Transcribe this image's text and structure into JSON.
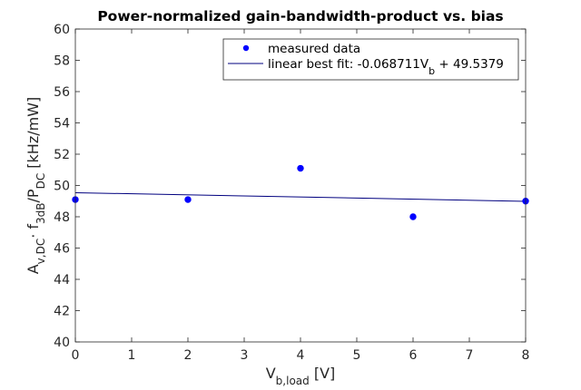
{
  "chart_data": {
    "type": "scatter",
    "title": "Power-normalized gain-bandwidth-product vs. bias",
    "xlabel": {
      "main": "V",
      "sub": "b,load",
      "rest": " [V]"
    },
    "ylabel": {
      "parts": [
        {
          "t": "A",
          "s": "n"
        },
        {
          "t": "v,DC",
          "s": "sub"
        },
        {
          "t": "· f",
          "s": "n"
        },
        {
          "t": "3dB",
          "s": "sub"
        },
        {
          "t": "/P",
          "s": "n"
        },
        {
          "t": "DC",
          "s": "sub"
        },
        {
          "t": " [kHz/mW]",
          "s": "n"
        }
      ]
    },
    "xlim": [
      0,
      8
    ],
    "ylim": [
      40,
      60
    ],
    "xticks": [
      0,
      1,
      2,
      3,
      4,
      5,
      6,
      7,
      8
    ],
    "yticks": [
      40,
      42,
      44,
      46,
      48,
      50,
      52,
      54,
      56,
      58,
      60
    ],
    "grid": false,
    "legend_position": "top-right",
    "series": [
      {
        "name": "measured data",
        "kind": "scatter",
        "color": "#0000ff",
        "x": [
          0,
          2,
          4,
          6,
          8
        ],
        "y": [
          49.1,
          49.1,
          51.1,
          48.0,
          49.0
        ]
      },
      {
        "name_parts": [
          {
            "t": "linear best fit: -0.068711V",
            "s": "n"
          },
          {
            "t": "b",
            "s": "sub"
          },
          {
            "t": " + 49.5379",
            "s": "n"
          }
        ],
        "kind": "line",
        "color": "#00007f",
        "slope": -0.068711,
        "intercept": 49.5379
      }
    ]
  }
}
